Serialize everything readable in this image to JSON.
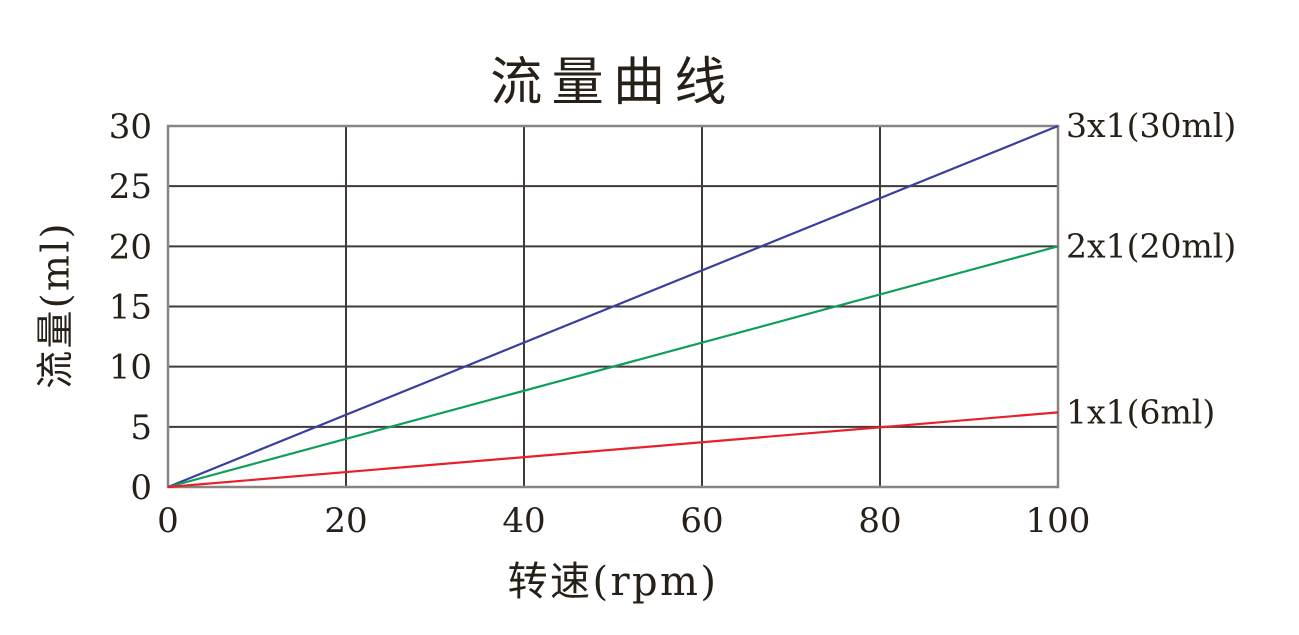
{
  "page": {
    "background": "#ffffff"
  },
  "chart_data": {
    "type": "line",
    "title": "流量曲线",
    "xlabel": "转速(rpm)",
    "ylabel": "流量(ml)",
    "xlim": [
      0,
      100
    ],
    "ylim": [
      0,
      30
    ],
    "x_ticks": [
      0,
      20,
      40,
      60,
      80,
      100
    ],
    "y_ticks": [
      0,
      5,
      10,
      15,
      20,
      25,
      30
    ],
    "grid": true,
    "legend_position": "right-at-line-end",
    "colors": {
      "frame": "#8a8481",
      "grid": "#3f3a38",
      "text": "#262019"
    },
    "series": [
      {
        "name": "3x1(30ml)",
        "color": "#3a3f9e",
        "x": [
          0,
          100
        ],
        "values": [
          0,
          30
        ]
      },
      {
        "name": "2x1(20ml)",
        "color": "#0f9f58",
        "x": [
          0,
          100
        ],
        "values": [
          0,
          20
        ]
      },
      {
        "name": "1x1(6ml)",
        "color": "#e62129",
        "x": [
          0,
          100
        ],
        "values": [
          0,
          6.2
        ]
      }
    ]
  }
}
